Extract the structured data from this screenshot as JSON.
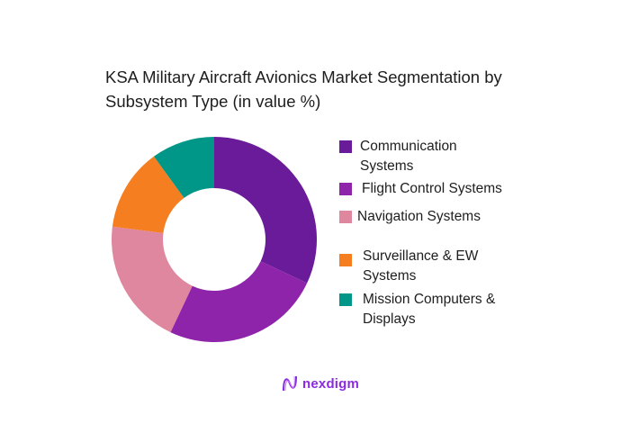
{
  "chart_data": {
    "type": "pie",
    "subtype": "donut",
    "title": "KSA Military Aircraft Avionics Market Segmentation by Subsystem Type (in value %)",
    "categories": [
      "Communication Systems",
      "Flight Control Systems",
      "Navigation Systems",
      "Surveillance & EW Systems",
      "Mission Computers & Displays"
    ],
    "values": [
      32,
      25,
      20,
      13,
      10
    ],
    "colors": [
      "#6a1b9a",
      "#8e24aa",
      "#de879f",
      "#f57f20",
      "#009688"
    ],
    "legend_position": "right",
    "data_labels": false
  },
  "title": "KSA Military Aircraft Avionics Market Segmentation by Subsystem Type (in value %)",
  "legend": [
    {
      "label": "Communication Systems",
      "color": "#6a1b9a"
    },
    {
      "label": "Flight Control Systems",
      "color": "#8e24aa"
    },
    {
      "label": "Navigation Systems",
      "color": "#de879f"
    },
    {
      "label": "Surveillance & EW Systems",
      "color": "#f57f20"
    },
    {
      "label": "Mission Computers & Displays",
      "color": "#009688"
    }
  ],
  "logo": {
    "text": "nexdigm",
    "color": "#8a2be2"
  }
}
